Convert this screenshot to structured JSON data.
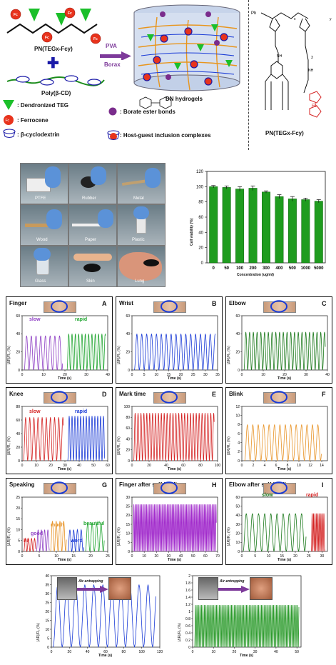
{
  "schematic": {
    "pn_label": "PN(TEGx-Fcy)",
    "poly_label": "Poly(β-CD)",
    "pva": "PVA",
    "borax": "Borax",
    "dn_label": "DN hydrogels",
    "structure_label": "PN(TEGx-Fcy)",
    "structure_ph": "Ph",
    "structure_nh": "NH",
    "structure_fe": "Fe",
    "structure_x": "x",
    "structure_y": "y",
    "structure_three": "3",
    "fc": "Fc",
    "legend": [
      {
        "text": ": Dendronized TEG",
        "icon": "teg-cone-icon"
      },
      {
        "text": ": Ferrocene",
        "icon": "ferrocene-icon"
      },
      {
        "text": ": β-cyclodextrin",
        "icon": "cyclodextrin-icon"
      }
    ],
    "legend_right": [
      {
        "text": ": Borate ester bonds",
        "icon": "borate-icon"
      },
      {
        "text": ": Host-guest inclusion complexes",
        "icon": "hostguest-icon"
      }
    ],
    "borate_label": "Borate ester bonds",
    "colors": {
      "teg": "#1bbf2a",
      "fc": "#e8331c",
      "cd": "#1a1aa8",
      "borax": "#7a2c8c",
      "arrow": "#7d3a9a"
    }
  },
  "adhesion": {
    "labels": [
      "PTFE",
      "Rubber",
      "Metal",
      "Wood",
      "Paper",
      "Plastic",
      "Glass",
      "Skin",
      "Lung"
    ]
  },
  "cell_chart": {
    "ylabel": "Cell viability (%)",
    "xlabel": "Concentration (ug/ml)"
  },
  "panels": {
    "A": {
      "title": "Finger",
      "letter": "A",
      "ylabel": "|ΔR|/R₀ (%)",
      "xlabel": "Time (s)",
      "words": [
        "slow",
        "rapid"
      ]
    },
    "B": {
      "title": "Wrist",
      "letter": "B",
      "ylabel": "|ΔR|/R₀ (%)",
      "xlabel": "Time (s)"
    },
    "C": {
      "title": "Elbow",
      "letter": "C",
      "ylabel": "|ΔR|/R₀ (%)",
      "xlabel": "Time (s)"
    },
    "D": {
      "title": "Knee",
      "letter": "D",
      "ylabel": "|ΔR|/R₀ (%)",
      "xlabel": "Time (s)",
      "words": [
        "slow",
        "rapid"
      ]
    },
    "E": {
      "title": "Mark time",
      "letter": "E",
      "ylabel": "|ΔR|/R₀ (%)",
      "xlabel": "Time (s)"
    },
    "F": {
      "title": "Blink",
      "letter": "F",
      "ylabel": "|ΔR|/R₀ (%)",
      "xlabel": "Time (s)"
    },
    "G": {
      "title": "Speaking",
      "letter": "G",
      "ylabel": "|ΔR|/R₀ (%)",
      "xlabel": "Time (s)",
      "words": [
        "hi",
        "good",
        "much",
        "word",
        "beautiful"
      ]
    },
    "H": {
      "title": "Finger after self-healing",
      "letter": "H",
      "ylabel": "|ΔR|/R₀ (%)",
      "xlabel": "Time (s)"
    },
    "I": {
      "title": "Elbow after self-healing",
      "letter": "I",
      "ylabel": "|ΔR|/R₀ (%)",
      "xlabel": "Time (s)",
      "words": [
        "slow",
        "rapid"
      ]
    },
    "J": {
      "ylabel": "|ΔR|/R₀ (%)",
      "xlabel": "Time (s)",
      "arrow": "Air-entrapping"
    },
    "K": {
      "ylabel": "|ΔR|/R₀ (%)",
      "xlabel": "Time (s)",
      "arrow": "Air-entrapping"
    }
  },
  "chart_data": [
    {
      "type": "bar",
      "name": "cell-viability",
      "categories": [
        "0",
        "50",
        "100",
        "200",
        "300",
        "400",
        "500",
        "1000",
        "5000"
      ],
      "values": [
        100,
        99,
        97,
        98,
        93,
        87,
        84,
        83,
        81
      ],
      "errors": [
        1.5,
        2,
        3,
        3,
        1.5,
        2.5,
        3,
        2,
        2
      ],
      "ylabel": "Cell viability (%)",
      "xlabel": "Concentration (ug/ml)",
      "ylim": [
        0,
        120
      ],
      "yticks": [
        0,
        20,
        40,
        60,
        80,
        100,
        120
      ],
      "color": "#1f9c1f"
    },
    {
      "type": "line",
      "panel": "A",
      "xlim": [
        0,
        40
      ],
      "xticks": [
        0,
        10,
        20,
        30,
        40
      ],
      "ylim": [
        0,
        60
      ],
      "yticks": [
        0,
        20,
        40,
        60
      ],
      "series": [
        {
          "name": "slow",
          "color": "#8e3fc4",
          "t_start": 1,
          "t_end": 19,
          "period": 2.2,
          "amp": 38
        },
        {
          "name": "rapid",
          "color": "#22a632",
          "t_start": 21,
          "t_end": 39,
          "period": 1.55,
          "amp": 40
        }
      ]
    },
    {
      "type": "line",
      "panel": "B",
      "xlim": [
        0,
        35
      ],
      "xticks": [
        0,
        5,
        10,
        15,
        20,
        25,
        30,
        35
      ],
      "ylim": [
        0,
        60
      ],
      "yticks": [
        0,
        20,
        40,
        60
      ],
      "series": [
        {
          "color": "#1a3bd6",
          "t_start": 1,
          "t_end": 34,
          "period": 2.0,
          "amp": 40
        }
      ]
    },
    {
      "type": "line",
      "panel": "C",
      "xlim": [
        0,
        40
      ],
      "xticks": [
        0,
        10,
        20,
        30,
        40
      ],
      "ylim": [
        0,
        60
      ],
      "yticks": [
        0,
        20,
        40,
        60
      ],
      "series": [
        {
          "color": "#1d7a1d",
          "t_start": 1,
          "t_end": 39,
          "period": 1.75,
          "amp": 42
        }
      ]
    },
    {
      "type": "line",
      "panel": "D",
      "xlim": [
        0,
        60
      ],
      "xticks": [
        0,
        10,
        20,
        30,
        40,
        50,
        60
      ],
      "ylim": [
        0,
        80
      ],
      "yticks": [
        0,
        20,
        40,
        60,
        80
      ],
      "series": [
        {
          "name": "slow",
          "color": "#d42222",
          "t_start": 1,
          "t_end": 29,
          "period": 2.9,
          "amp": 64
        },
        {
          "name": "rapid",
          "color": "#1a3bd6",
          "t_start": 32,
          "t_end": 58,
          "period": 2.0,
          "amp": 66
        }
      ]
    },
    {
      "type": "line",
      "panel": "E",
      "xlim": [
        0,
        100
      ],
      "xticks": [
        0,
        20,
        40,
        60,
        80,
        100
      ],
      "ylim": [
        0,
        100
      ],
      "yticks": [
        0,
        20,
        40,
        60,
        80,
        100
      ],
      "series": [
        {
          "color": "#d42222",
          "t_start": 2,
          "t_end": 96,
          "period": 3.4,
          "amp": 88
        }
      ]
    },
    {
      "type": "line",
      "panel": "F",
      "xlim": [
        0,
        15
      ],
      "xticks": [
        0,
        2,
        4,
        6,
        8,
        10,
        12,
        14
      ],
      "ylim": [
        0,
        12
      ],
      "yticks": [
        0,
        2,
        4,
        6,
        8,
        10,
        12
      ],
      "series": [
        {
          "color": "#e89428",
          "t_start": 0.5,
          "t_end": 14,
          "period": 0.95,
          "amp": 8
        }
      ]
    },
    {
      "type": "line",
      "panel": "G",
      "xlim": [
        0,
        25
      ],
      "xticks": [
        0,
        5,
        10,
        15,
        20,
        25
      ],
      "ylim": [
        0,
        25
      ],
      "yticks": [
        0,
        5,
        10,
        15,
        20,
        25
      ],
      "series": [
        {
          "name": "hi",
          "color": "#d42222",
          "t_start": 0.5,
          "t_end": 4,
          "period": 0.9,
          "amp": 6
        },
        {
          "name": "good",
          "color": "#8e3fc4",
          "t_start": 4.2,
          "t_end": 8,
          "period": 0.95,
          "amp": 10
        },
        {
          "name": "much",
          "color": "#e89428",
          "t_start": 8.3,
          "t_end": 13,
          "period": 1.1,
          "amp": 14
        },
        {
          "name": "word",
          "color": "#1a3bd6",
          "t_start": 13.4,
          "t_end": 18,
          "period": 1.1,
          "amp": 10
        },
        {
          "name": "beautiful",
          "color": "#22a632",
          "t_start": 18.5,
          "t_end": 24,
          "period": 1.3,
          "amp": 13
        }
      ]
    },
    {
      "type": "line",
      "panel": "H",
      "xlim": [
        0,
        70
      ],
      "xticks": [
        0,
        10,
        20,
        30,
        40,
        50,
        60,
        70
      ],
      "ylim": [
        0,
        30
      ],
      "yticks": [
        0,
        5,
        10,
        15,
        20,
        25,
        30
      ],
      "series": [
        {
          "color": "#a22ccc",
          "t_start": 1,
          "t_end": 69,
          "period": 1.05,
          "amp": 26
        }
      ]
    },
    {
      "type": "line",
      "panel": "I",
      "xlim": [
        0,
        32
      ],
      "xticks": [
        0,
        5,
        10,
        15,
        20,
        25,
        30
      ],
      "ylim": [
        0,
        60
      ],
      "yticks": [
        0,
        10,
        20,
        30,
        40,
        50,
        60
      ],
      "series": [
        {
          "name": "slow",
          "color": "#1d7a1d",
          "t_start": 0.5,
          "t_end": 24,
          "period": 2.3,
          "amp": 42
        },
        {
          "name": "rapid",
          "color": "#d42222",
          "t_start": 26,
          "t_end": 31,
          "period": 0.55,
          "amp": 42
        }
      ]
    },
    {
      "type": "line",
      "panel": "J",
      "xlim": [
        0,
        120
      ],
      "xticks": [
        0,
        20,
        40,
        60,
        80,
        100,
        120
      ],
      "ylim": [
        0,
        40
      ],
      "yticks": [
        0,
        5,
        10,
        15,
        20,
        25,
        30,
        35,
        40
      ],
      "series": [
        {
          "color": "#1a3bd6",
          "t_start": 2,
          "t_end": 116,
          "period": 10.0,
          "amp": 35
        }
      ]
    },
    {
      "type": "line",
      "panel": "K",
      "xlim": [
        0,
        52
      ],
      "xticks": [
        0,
        10,
        20,
        30,
        40,
        50
      ],
      "ylim": [
        0,
        2.0
      ],
      "yticks": [
        0,
        0.2,
        0.4,
        0.6,
        0.8,
        1.0,
        1.2,
        1.4,
        1.6,
        1.8,
        2.0
      ],
      "series": [
        {
          "color": "#2a9a2a",
          "t_start": 1,
          "t_end": 51,
          "period": 0.72,
          "amp": 1.18
        }
      ]
    }
  ]
}
